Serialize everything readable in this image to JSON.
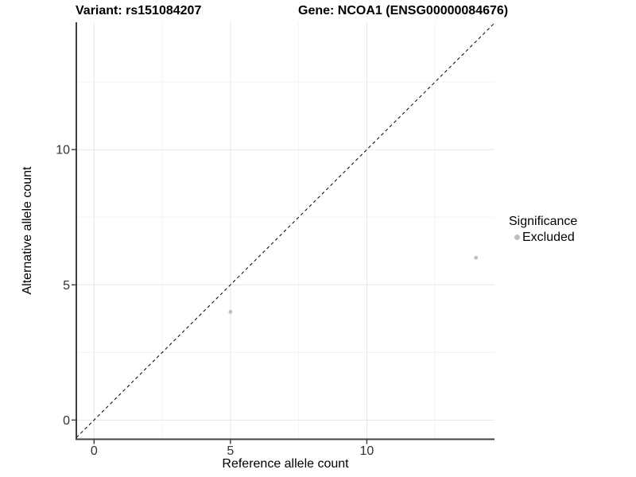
{
  "figure": {
    "background": "#ffffff",
    "title_variant": "Variant: rs151084207",
    "title_gene": "Gene: NCOA1 (ENSG00000084676)"
  },
  "legend": {
    "title": "Significance",
    "items": [
      {
        "label": "Excluded",
        "color": "#bebebe"
      }
    ]
  },
  "chart_data": {
    "type": "scatter",
    "title": "Variant: rs151084207 / Gene: NCOA1 (ENSG00000084676)",
    "xlabel": "Reference allele count",
    "ylabel": "Alternative allele count",
    "xlim": [
      -0.65,
      14.68
    ],
    "ylim": [
      -0.71,
      14.71
    ],
    "x_major_ticks": [
      0,
      5,
      10
    ],
    "y_major_ticks": [
      0,
      5,
      10
    ],
    "x_minor_ticks": [
      2.5,
      7.5,
      12.5
    ],
    "y_minor_ticks": [
      2.5,
      7.5,
      12.5
    ],
    "grid": "major+minor",
    "legend_position": "right",
    "series": [
      {
        "name": "Excluded",
        "color": "#bebebe",
        "marker_radius": 2.4,
        "points": [
          {
            "x": 5,
            "y": 4
          },
          {
            "x": 14,
            "y": 6
          }
        ]
      }
    ],
    "reference_line": {
      "kind": "abline",
      "slope": 1,
      "intercept": 0,
      "style": "dashed",
      "color": "#000000"
    },
    "colors": {
      "grid_major": "#e6e6e6",
      "grid_minor": "#f2f2f2",
      "axis_line": "#404040",
      "tick_text": "#333333"
    }
  }
}
